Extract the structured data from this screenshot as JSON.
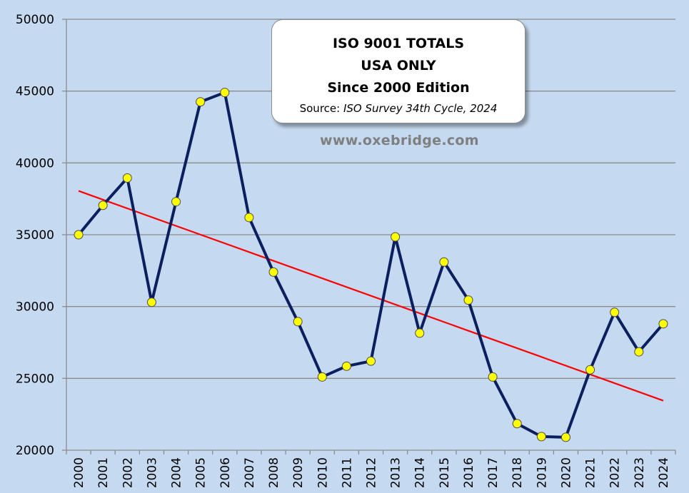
{
  "title": {
    "line1": "ISO 9001 TOTALS",
    "line2": "USA ONLY",
    "line3": "Since 2000 Edition",
    "source_prefix": "Source: ",
    "source_italic": "ISO Survey 34th Cycle, 2024"
  },
  "website": "www.oxebridge.com",
  "colors": {
    "background": "#c5d9f0",
    "series_line": "#0b1f5e",
    "marker_fill": "#ffff00",
    "trend_line": "#ff0000",
    "grid": "#8c8c8c"
  },
  "chart_data": {
    "type": "line",
    "x": [
      "2000",
      "2001",
      "2002",
      "2003",
      "2004",
      "2005",
      "2006",
      "2007",
      "2008",
      "2009",
      "2010",
      "2011",
      "2012",
      "2013",
      "2014",
      "2015",
      "2016",
      "2017",
      "2018",
      "2019",
      "2020",
      "2021",
      "2022",
      "2023",
      "2024"
    ],
    "series": [
      {
        "values": [
          35000,
          37050,
          38950,
          30300,
          37300,
          44250,
          44900,
          36200,
          32400,
          28950,
          25100,
          25850,
          26200,
          34850,
          28150,
          33100,
          30450,
          25100,
          21850,
          20950,
          20900,
          25600,
          29600,
          26850,
          28800
        ]
      }
    ],
    "trendline": {
      "start": 38050,
      "end": 23450
    },
    "ylim": [
      20000,
      50000
    ],
    "yticks": [
      20000,
      25000,
      30000,
      35000,
      40000,
      45000,
      50000
    ],
    "grid": true,
    "legend": "none"
  }
}
